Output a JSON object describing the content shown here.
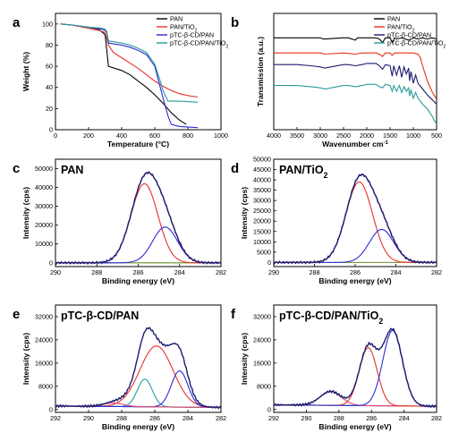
{
  "colors": {
    "black": "#000000",
    "red": "#e8312a",
    "blue": "#2b2bd4",
    "teal": "#2a9a9a",
    "orange": "#e8311a",
    "navy": "#1b1b6e",
    "base": "#6b8e23",
    "pink": "#e0447a"
  },
  "chart_data": [
    {
      "id": "a",
      "panel_label": "a",
      "type": "line",
      "title": "",
      "xlabel": "Temperature (°C)",
      "ylabel": "Weight (%)",
      "xlim": [
        0,
        1000
      ],
      "ylim": [
        0,
        110
      ],
      "xticks": [
        "0",
        "200",
        "400",
        "600",
        "800",
        "1000"
      ],
      "yticks": [
        "0",
        "20",
        "40",
        "60",
        "80",
        "100"
      ],
      "legend_position": "top-right",
      "series": [
        {
          "name": "PAN",
          "color_key": "black",
          "x": [
            30,
            100,
            200,
            260,
            300,
            310,
            320,
            400,
            450,
            500,
            550,
            600,
            650,
            700,
            750,
            790
          ],
          "y": [
            100,
            99,
            97,
            95,
            90,
            75,
            60,
            56,
            52,
            46,
            40,
            33,
            25,
            16,
            9,
            5
          ]
        },
        {
          "name": "PAN/TiO2",
          "color_key": "red",
          "x": [
            30,
            100,
            200,
            260,
            300,
            320,
            350,
            400,
            450,
            500,
            550,
            600,
            650,
            700,
            750,
            810,
            860
          ],
          "y": [
            100,
            99,
            96,
            94,
            92,
            80,
            73,
            68,
            63,
            58,
            52,
            46,
            41,
            37,
            34,
            32,
            31
          ]
        },
        {
          "name": "pTC-β-CD/PAN",
          "color_key": "blue",
          "x": [
            30,
            100,
            200,
            280,
            300,
            310,
            320,
            400,
            450,
            500,
            550,
            600,
            625,
            650,
            680,
            700,
            750,
            860
          ],
          "y": [
            100,
            99,
            97,
            95,
            94,
            92,
            82,
            80,
            78,
            75,
            71,
            60,
            45,
            30,
            13,
            5,
            3,
            2
          ]
        },
        {
          "name": "pTC-β-CD/PAN/TiO2",
          "color_key": "teal",
          "x": [
            30,
            100,
            200,
            280,
            300,
            310,
            320,
            400,
            450,
            500,
            550,
            600,
            625,
            650,
            680,
            750,
            860
          ],
          "y": [
            100,
            99,
            97,
            96,
            95,
            93,
            84,
            82,
            80,
            77,
            73,
            62,
            50,
            37,
            27,
            27,
            26
          ]
        }
      ]
    },
    {
      "id": "b",
      "panel_label": "b",
      "type": "line",
      "title": "",
      "xlabel": "Wavenumber cm-1",
      "ylabel": "Transmission (a.u.)",
      "xlim": [
        4000,
        500
      ],
      "ylim": [
        0,
        100
      ],
      "xticks": [
        "4000",
        "3500",
        "3000",
        "2500",
        "2000",
        "1500",
        "1000",
        "500"
      ],
      "legend_position": "top-right",
      "series": [
        {
          "name": "PAN",
          "color_key": "black",
          "x": [
            4000,
            3500,
            3000,
            2940,
            2900,
            2500,
            2400,
            2244,
            2200,
            2000,
            1800,
            1730,
            1660,
            1600,
            1500,
            1454,
            1400,
            1360,
            1250,
            1100,
            1000,
            900,
            800,
            700,
            600,
            500
          ],
          "y": [
            79,
            79,
            79,
            78,
            78,
            79,
            79,
            77,
            79,
            79,
            79,
            78,
            75,
            79,
            79,
            75,
            79,
            78,
            79,
            77,
            79,
            78,
            79,
            78,
            79,
            78
          ]
        },
        {
          "name": "PAN/TiO2",
          "color_key": "orange",
          "x": [
            4000,
            3500,
            3000,
            2900,
            2500,
            2244,
            2100,
            2000,
            1900,
            1800,
            1730,
            1660,
            1600,
            1500,
            1454,
            1400,
            1300,
            1200,
            1100,
            1000,
            900,
            850,
            800,
            700,
            600,
            500
          ],
          "y": [
            66,
            66,
            66,
            65,
            66,
            65,
            66,
            66,
            66,
            66,
            65,
            63,
            66,
            66,
            64,
            66,
            66,
            66,
            66,
            66,
            65,
            62,
            55,
            42,
            33,
            26
          ]
        },
        {
          "name": "pTC-β-CD/PAN",
          "color_key": "navy",
          "x": [
            4000,
            3500,
            3200,
            3000,
            2900,
            2500,
            2400,
            2244,
            2100,
            2000,
            1900,
            1800,
            1730,
            1660,
            1600,
            1500,
            1454,
            1420,
            1360,
            1300,
            1250,
            1200,
            1150,
            1100,
            1080,
            1050,
            1000,
            950,
            900,
            800,
            700,
            600,
            500
          ],
          "y": [
            56,
            56,
            55,
            54,
            53,
            56,
            56,
            55,
            56,
            57,
            57,
            57,
            55,
            52,
            56,
            55,
            46,
            55,
            47,
            55,
            45,
            54,
            48,
            53,
            42,
            50,
            40,
            47,
            40,
            35,
            30,
            26,
            22
          ]
        },
        {
          "name": "pTC-β-CD/PAN/TiO2",
          "color_key": "teal",
          "x": [
            4000,
            3500,
            3200,
            3000,
            2900,
            2500,
            2400,
            2244,
            2100,
            2000,
            1900,
            1800,
            1730,
            1660,
            1600,
            1500,
            1454,
            1420,
            1360,
            1300,
            1250,
            1200,
            1150,
            1100,
            1080,
            1050,
            1000,
            950,
            900,
            800,
            700,
            600,
            550,
            500
          ],
          "y": [
            38,
            38,
            37,
            36,
            35,
            38,
            38,
            37,
            38,
            39,
            39,
            39,
            37,
            36,
            39,
            38,
            33,
            38,
            33,
            38,
            32,
            37,
            33,
            36,
            29,
            34,
            27,
            32,
            27,
            22,
            18,
            12,
            8,
            5
          ]
        }
      ]
    },
    {
      "id": "c",
      "panel_label": "c",
      "panel_title": "PAN",
      "type": "line",
      "title": "",
      "xlabel": "Binding energy (eV)",
      "ylabel": "Intensity (cps)",
      "xlim": [
        290,
        282
      ],
      "ylim": [
        -2000,
        55000
      ],
      "xticks": [
        "290",
        "288",
        "286",
        "284",
        "282"
      ],
      "yticks": [
        "0",
        "10000",
        "20000",
        "30000",
        "40000",
        "50000"
      ],
      "series": [
        {
          "name": "",
          "color_key": "base",
          "x": [
            290,
            282
          ],
          "y": [
            0,
            0
          ]
        },
        {
          "name": "",
          "color_key": "red",
          "peak": {
            "center": 285.7,
            "height": 42000,
            "sigma": 0.65
          }
        },
        {
          "name": "",
          "color_key": "blue",
          "peak": {
            "center": 284.7,
            "height": 19000,
            "sigma": 0.6
          }
        },
        {
          "name": "",
          "color_key": "pink",
          "sum": true
        },
        {
          "name": "",
          "color_key": "navy",
          "sum": true,
          "raw": true
        }
      ]
    },
    {
      "id": "d",
      "panel_label": "d",
      "panel_title": "PAN/TiO2",
      "type": "line",
      "title": "",
      "xlabel": "Binding energy (eV)",
      "ylabel": "Intensity (cps)",
      "xlim": [
        290,
        282
      ],
      "ylim": [
        -2000,
        50000
      ],
      "xticks": [
        "290",
        "288",
        "286",
        "284",
        "282"
      ],
      "yticks": [
        "0",
        "5000",
        "10000",
        "15000",
        "20000",
        "25000",
        "30000",
        "35000",
        "40000",
        "45000",
        "50000"
      ],
      "series": [
        {
          "name": "",
          "color_key": "base",
          "x": [
            290,
            282
          ],
          "y": [
            0,
            0
          ]
        },
        {
          "name": "",
          "color_key": "red",
          "peak": {
            "center": 285.8,
            "height": 39000,
            "sigma": 0.65
          }
        },
        {
          "name": "",
          "color_key": "blue",
          "peak": {
            "center": 284.7,
            "height": 16000,
            "sigma": 0.6
          }
        },
        {
          "name": "",
          "color_key": "pink",
          "sum": true
        },
        {
          "name": "",
          "color_key": "navy",
          "sum": true,
          "raw": true
        }
      ]
    },
    {
      "id": "e",
      "panel_label": "e",
      "panel_title": "pTC-β-CD/PAN",
      "type": "line",
      "title": "",
      "xlabel": "Binding energy (eV)",
      "ylabel": "Intensity (cps)",
      "xlim": [
        292,
        282
      ],
      "ylim": [
        -1000,
        36000
      ],
      "xticks": [
        "292",
        "290",
        "288",
        "286",
        "284",
        "282"
      ],
      "yticks": [
        "0",
        "8000",
        "16000",
        "24000",
        "32000"
      ],
      "series": [
        {
          "name": "",
          "color_key": "base",
          "x": [
            292,
            290,
            288,
            286,
            284,
            282
          ],
          "y": [
            1200,
            1100,
            1000,
            900,
            800,
            700
          ]
        },
        {
          "name": "",
          "color_key": "teal",
          "peak": {
            "center": 286.6,
            "height": 9500,
            "sigma": 0.45
          }
        },
        {
          "name": "",
          "color_key": "red",
          "peak": {
            "center": 285.9,
            "height": 21000,
            "sigma": 1.0
          }
        },
        {
          "name": "",
          "color_key": "blue",
          "peak": {
            "center": 284.5,
            "height": 12500,
            "sigma": 0.5
          }
        },
        {
          "name": "",
          "color_key": "pink",
          "peak": {
            "center": 288.5,
            "height": 1200,
            "sigma": 0.6
          }
        },
        {
          "name": "",
          "color_key": "navy",
          "sum": true,
          "raw": true
        }
      ]
    },
    {
      "id": "f",
      "panel_label": "f",
      "panel_title": "pTC-β-CD/PAN/TiO2",
      "type": "line",
      "title": "",
      "xlabel": "Binding energy (eV)",
      "ylabel": "Intensity (cps)",
      "xlim": [
        292,
        282
      ],
      "ylim": [
        -1000,
        36000
      ],
      "xticks": [
        "292",
        "290",
        "288",
        "286",
        "284",
        "282"
      ],
      "yticks": [
        "0",
        "8000",
        "16000",
        "24000",
        "32000"
      ],
      "series": [
        {
          "name": "",
          "color_key": "base",
          "x": [
            292,
            290,
            288,
            286,
            284,
            282
          ],
          "y": [
            1600,
            1500,
            1400,
            1300,
            1200,
            1100
          ]
        },
        {
          "name": "",
          "color_key": "pink",
          "peak": {
            "center": 288.5,
            "height": 4800,
            "sigma": 0.65
          }
        },
        {
          "name": "",
          "color_key": "red",
          "peak": {
            "center": 286.2,
            "height": 20000,
            "sigma": 0.55
          }
        },
        {
          "name": "",
          "color_key": "blue",
          "peak": {
            "center": 284.7,
            "height": 26000,
            "sigma": 0.6
          }
        },
        {
          "name": "",
          "color_key": "navy",
          "sum": true,
          "raw": true
        }
      ]
    }
  ]
}
